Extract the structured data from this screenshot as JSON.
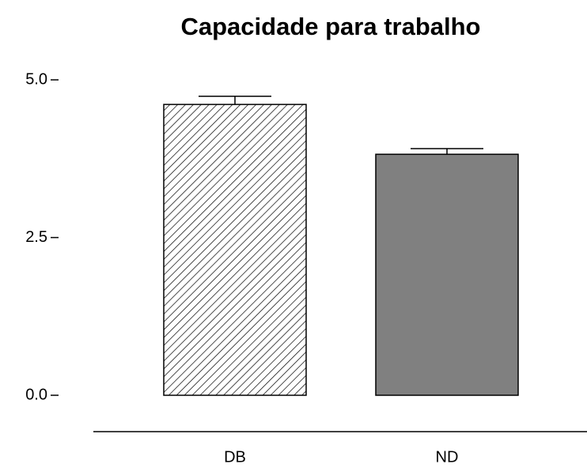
{
  "chart_data": {
    "type": "bar",
    "title": "Capacidade para trabalho",
    "categories": [
      "DB",
      "ND"
    ],
    "values": [
      4.61,
      3.82
    ],
    "errors": [
      0.13,
      0.09
    ],
    "colors": [
      "#ffffff",
      "#808080"
    ],
    "hatch": [
      true,
      false
    ],
    "ylim": [
      0,
      5
    ],
    "yticks": [
      {
        "value": 0,
        "label": "0.0"
      },
      {
        "value": 2.5,
        "label": "2.5"
      },
      {
        "value": 5,
        "label": "5.0"
      }
    ]
  }
}
